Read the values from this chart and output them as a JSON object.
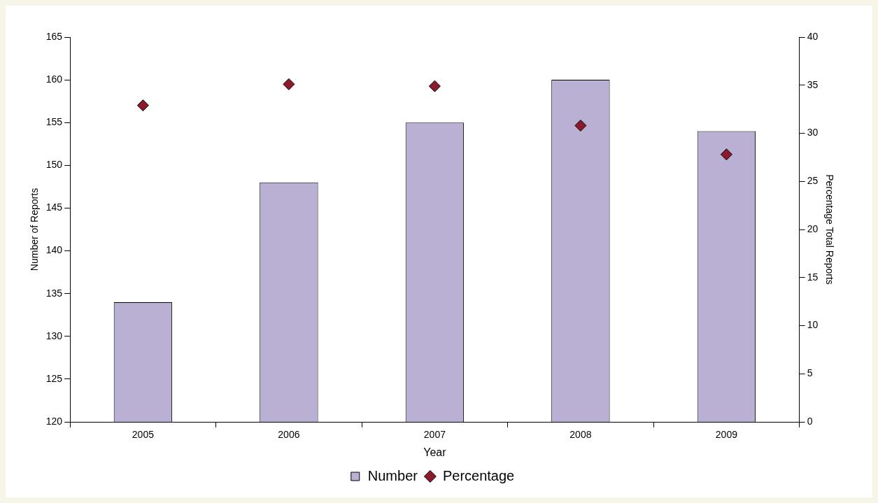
{
  "chart_data": {
    "type": "bar",
    "xlabel": "Year",
    "ylabel": "Number of Reports",
    "y2label": "Percentage Total Reports",
    "categories": [
      "2005",
      "2006",
      "2007",
      "2008",
      "2009"
    ],
    "series": [
      {
        "name": "Number",
        "color": "#b9b0d4",
        "values": [
          134,
          148,
          155,
          160,
          154
        ]
      },
      {
        "name": "Percentage",
        "type": "scatter",
        "axis": "y2",
        "color": "#8b1a2a",
        "marker": "diamond",
        "values": [
          32.9,
          35.1,
          34.9,
          30.8,
          27.8
        ]
      }
    ],
    "ylim": [
      120,
      165
    ],
    "yticks": [
      120,
      125,
      130,
      135,
      140,
      145,
      150,
      155,
      160,
      165
    ],
    "y2lim": [
      0,
      40
    ],
    "y2ticks": [
      0,
      5,
      10,
      15,
      20,
      25,
      30,
      35,
      40
    ],
    "grid": false,
    "legend": "bottom"
  }
}
